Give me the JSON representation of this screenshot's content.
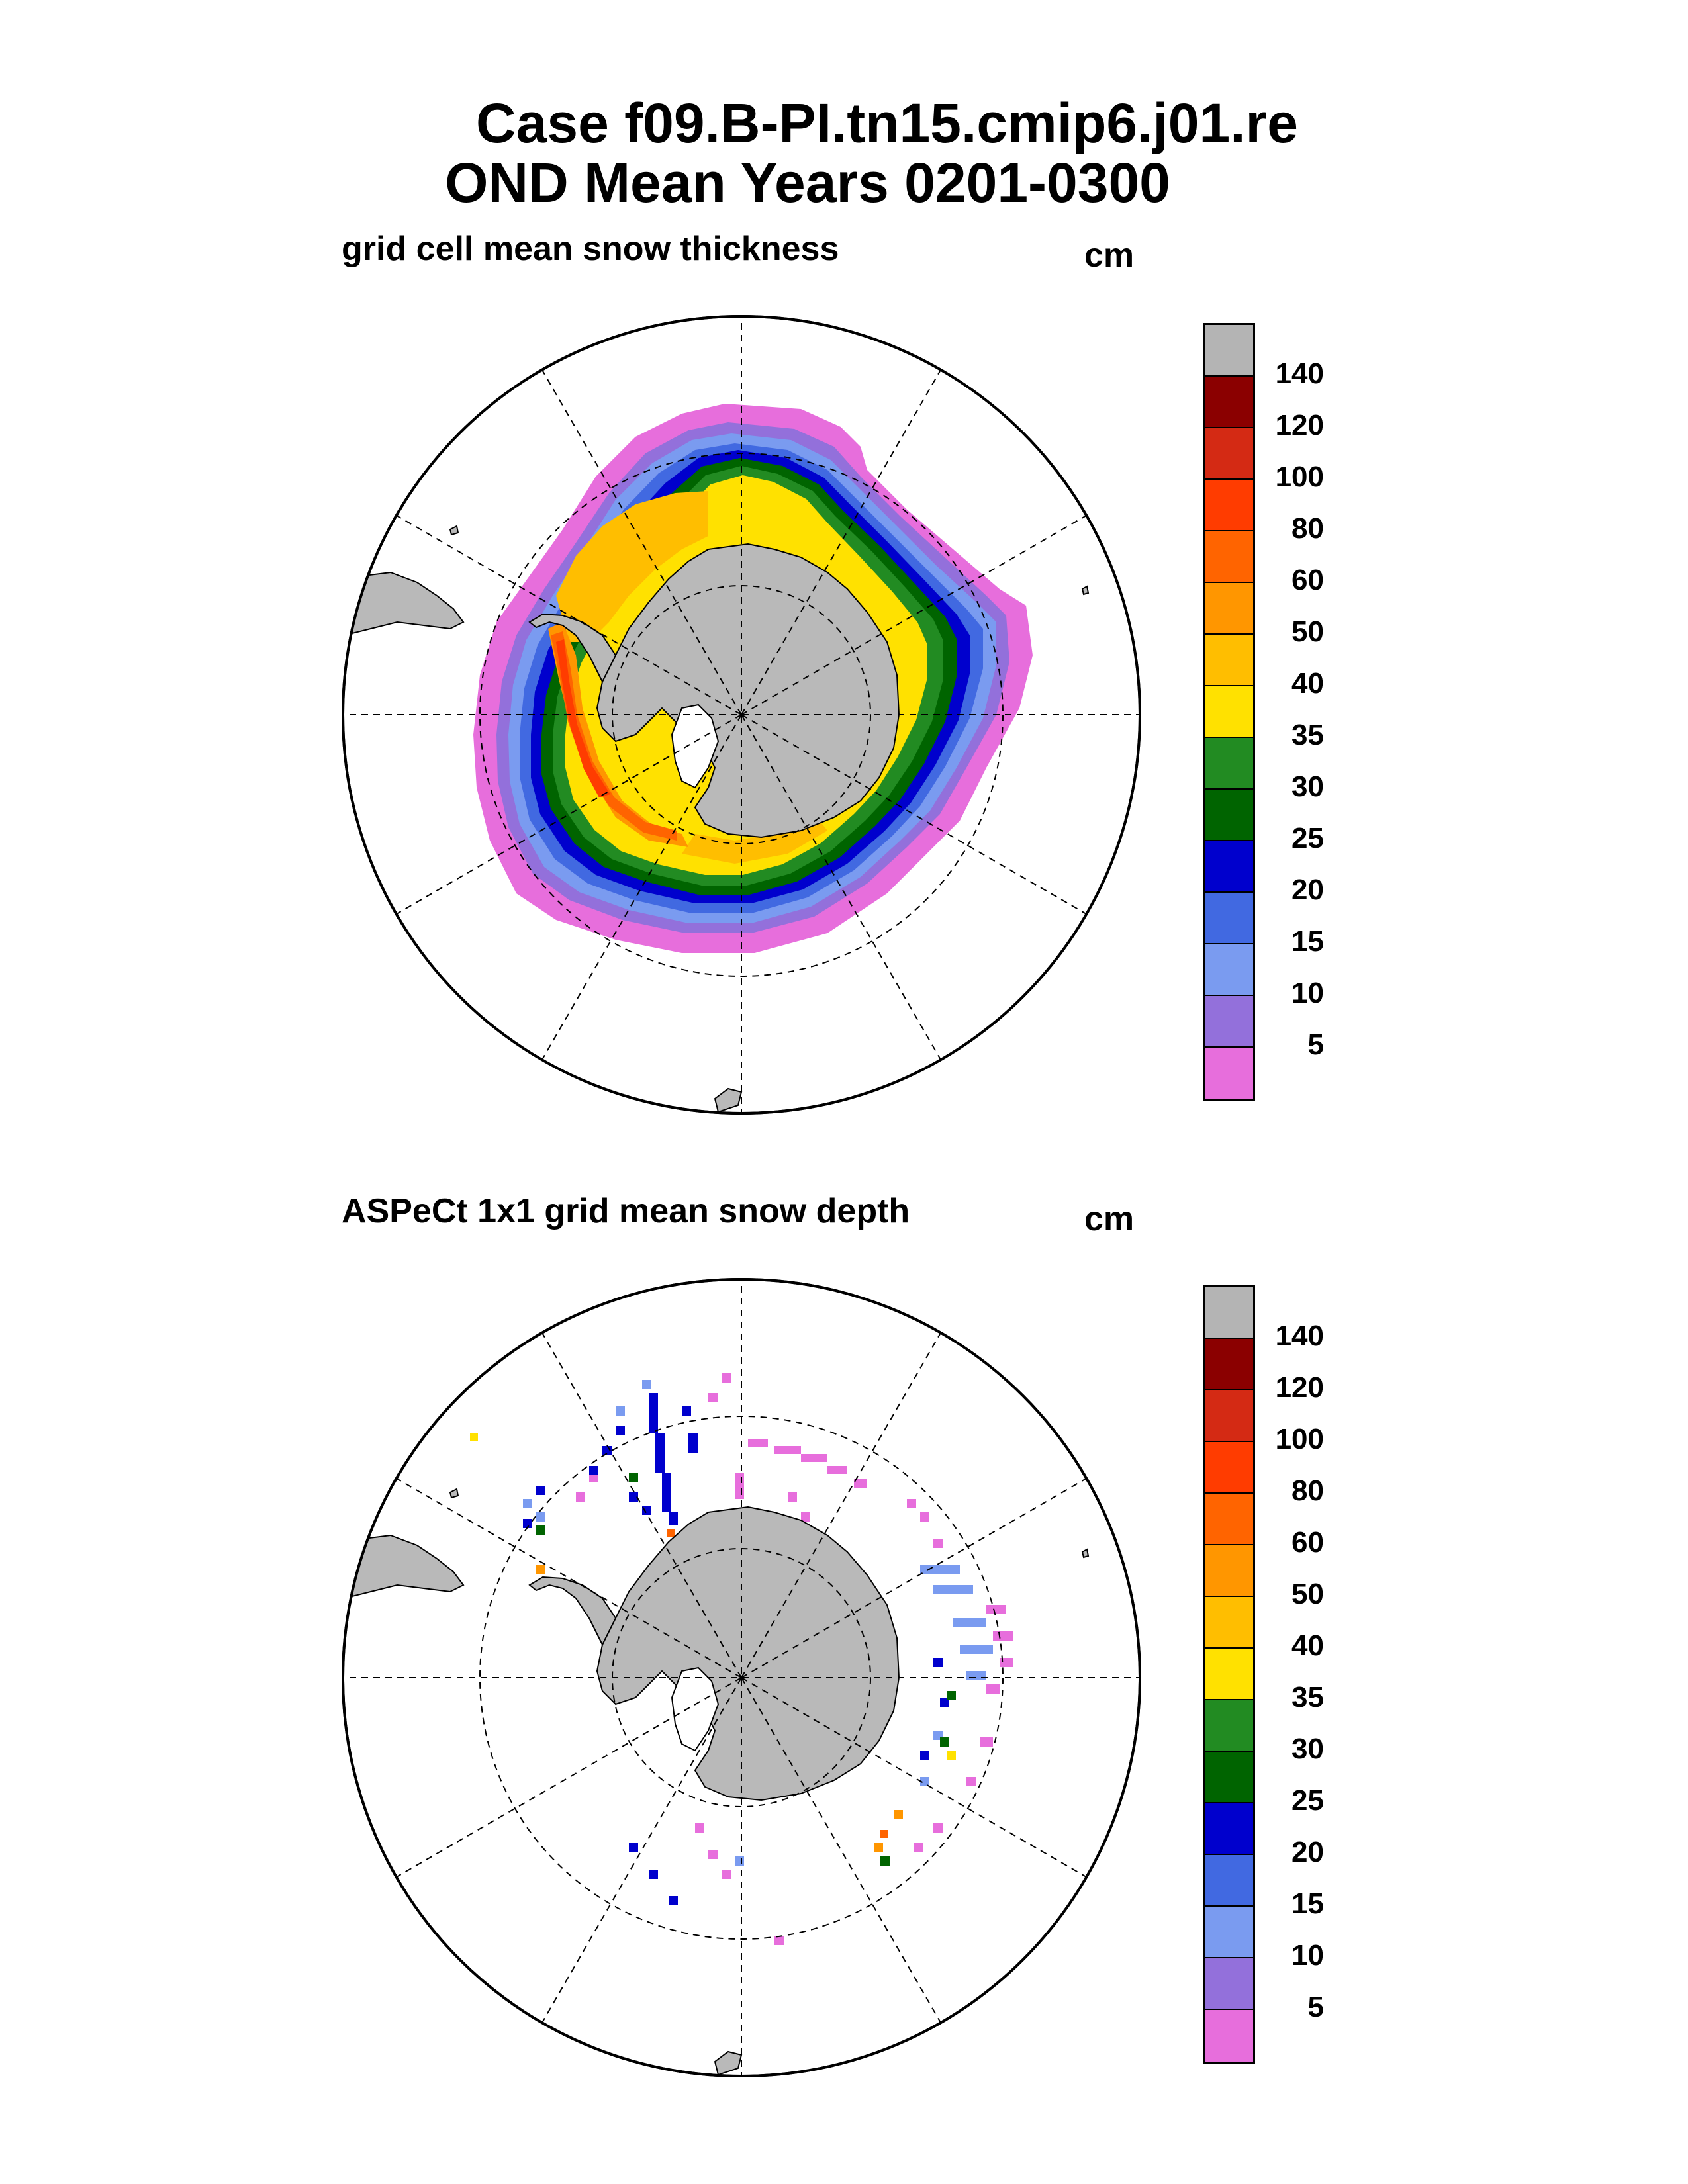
{
  "title": {
    "line1": "Case f09.B-PI.tn15.cmip6.j01.re",
    "line2": "OND Mean   Years 0201-0300"
  },
  "panels": [
    {
      "label": "grid cell mean snow thickness",
      "unit": "cm"
    },
    {
      "label": "ASPeCt 1x1 grid mean snow depth",
      "unit": "cm"
    }
  ],
  "colorbar": {
    "labels": [
      "140",
      "120",
      "100",
      "80",
      "60",
      "50",
      "40",
      "35",
      "30",
      "25",
      "20",
      "15",
      "10",
      "5"
    ],
    "colors": [
      "#b4b4b4",
      "#8b0000",
      "#d42a14",
      "#ff3c00",
      "#ff6400",
      "#ff9600",
      "#ffbe00",
      "#ffe100",
      "#228b22",
      "#006400",
      "#0000cd",
      "#4169e1",
      "#7a9bf0",
      "#9370db",
      "#e76edc"
    ]
  },
  "map": {
    "land_color": "#b9b9b9",
    "gridline_style": "dashed"
  }
}
